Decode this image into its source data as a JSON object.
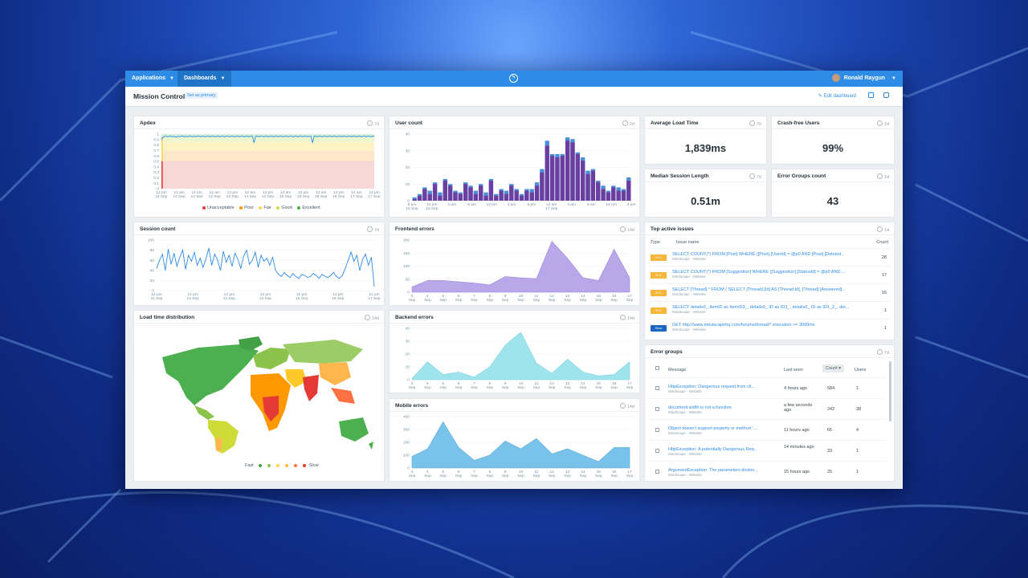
{
  "nav": {
    "applications": "Applications",
    "dashboards": "Dashboards",
    "user": "Ronald Raygun"
  },
  "page": {
    "title": "Mission Control",
    "set_primary": "Set as primary",
    "edit": "Edit dashboard"
  },
  "colors": {
    "topbar": "#2e8ce6",
    "accent": "#2e8ce6",
    "purple": "#6a3fa0",
    "purple_light": "#b9a7ea",
    "cyan": "#9fe3ec",
    "blue_area": "#79c2ea",
    "error_tag": "#f6b63a",
    "slow_tag": "#1a66c2"
  },
  "panels": {
    "apdex": {
      "title": "Apdex",
      "range": "7d"
    },
    "user_count": {
      "title": "User count",
      "range": "2d"
    },
    "avg_load": {
      "title": "Average Load Time",
      "range": "7d",
      "value": "1,839ms"
    },
    "crash_free": {
      "title": "Crash-free Users",
      "range": "1d",
      "value": "99%"
    },
    "median_session": {
      "title": "Median Session Length",
      "range": "7d",
      "value": "0.51m"
    },
    "error_groups_count": {
      "title": "Error Groups count",
      "range": "1d",
      "value": "43"
    },
    "session_count": {
      "title": "Session count",
      "range": "7d"
    },
    "frontend": {
      "title": "Frontend errors",
      "range": "14d"
    },
    "backend": {
      "title": "Backend errors",
      "range": "14d"
    },
    "mobile": {
      "title": "Mobile errors",
      "range": "14d"
    },
    "load_dist": {
      "title": "Load time distribution",
      "range": "14d",
      "fast": "Fast",
      "slow": "Slow"
    },
    "top_issues": {
      "title": "Top active issues",
      "range": "1d",
      "h_type": "Type",
      "h_name": "Issue name",
      "h_count": "Count"
    },
    "error_groups": {
      "title": "Error groups",
      "range": "7d",
      "h_msg": "Message",
      "h_seen": "Last seen",
      "h_count": "Count",
      "h_users": "Users"
    }
  },
  "apdex_legend": [
    "Unacceptable",
    "Poor",
    "Fair",
    "Good",
    "Excellent"
  ],
  "apdex_legend_colors": [
    "#e53935",
    "#ff9800",
    "#ffd54f",
    "#cddc39",
    "#4caf50"
  ],
  "top_issues": [
    {
      "tag": "N+1",
      "name": "SELECT COUNT(*) FROM [Post] WHERE ([Post].[UserId] = @p0 AND [Post].[Deleted...",
      "app": "Mindscape - Website",
      "count": "28"
    },
    {
      "tag": "N+1",
      "name": "SELECT COUNT(*) FROM [Suggestion] WHERE ([Suggestion].[StatusId] = @p0 AND ...",
      "app": "Mindscape - Website",
      "count": "17"
    },
    {
      "tag": "N+1",
      "name": "SELECT [Thread].* FROM ( SELECT [Thread].[Id] AS [Thread.Id], [Thread].[Answered]...",
      "app": "Mindscape - Website",
      "count": "16"
    },
    {
      "tag": "N+1",
      "name": "SELECT details0_.ItemID as ItemID3_, details0_.ID as ID3_, details0_.ID as ID1_2_, det...",
      "app": "Mindscape - Website",
      "count": "1"
    },
    {
      "tag": "Slow",
      "name": "GET http://www.mindscapehq.com/forums/thread/* execution >= 3000ms",
      "app": "Mindscape - Website",
      "count": "1"
    }
  ],
  "error_rows": [
    {
      "msg": "HttpException: Dangerous request from cli...",
      "app": "Mindscape - Website",
      "seen": "4 hours ago",
      "count": "584",
      "users": "1"
    },
    {
      "msg": "document.width is not a function",
      "app": "Mindscape - Website",
      "seen": "a few seconds ago",
      "count": "242",
      "users": "38"
    },
    {
      "msg": "Object doesn't support property or method '...",
      "app": "Mindscape - Website",
      "seen": "11 hours ago",
      "count": "65",
      "users": "4"
    },
    {
      "msg": "HttpException: A potentially Dangerous Req...",
      "app": "Mindscape - Website",
      "seen": "14 minutes ago",
      "count": "33",
      "users": "1"
    },
    {
      "msg": "ArgumentException: The parameters diction...",
      "app": "Mindscape - Website",
      "seen": "15 hours ago",
      "count": "25",
      "users": "1"
    }
  ],
  "chart_data": [
    {
      "id": "apdex",
      "type": "line",
      "title": "Apdex",
      "ylim": [
        0,
        1
      ],
      "yticks": [
        "0",
        "0.1",
        "0.2",
        "0.3",
        "0.4",
        "0.5",
        "0.6",
        "0.7",
        "0.8",
        "0.9",
        "1"
      ],
      "xticks": [
        "12 pm|11 Sep",
        "12 am|12 Sep",
        "12 pm|12 Sep",
        "12 am|13 Sep",
        "12 pm|13 Sep",
        "12 am|14 Sep",
        "12 pm|14 Sep",
        "12 am|15 Sep",
        "12 pm|15 Sep",
        "12 am|16 Sep",
        "12 pm|16 Sep",
        "12 am|17 Sep",
        "12 pm|17 Sep"
      ],
      "values": [
        0.9,
        0.94,
        0.96,
        0.96,
        0.95,
        0.96,
        0.96,
        0.95,
        0.96,
        0.94,
        0.96,
        0.95,
        0.96,
        0.96,
        0.95,
        0.96,
        0.95,
        0.96,
        0.96,
        0.95,
        0.96,
        0.95,
        0.96,
        0.96,
        0.95,
        0.96,
        0.96,
        0.95,
        0.96,
        0.96,
        0.95,
        0.96,
        0.96,
        0.95,
        0.96,
        0.96,
        0.95,
        0.96,
        0.96,
        0.95,
        0.96,
        0.96,
        0.95,
        0.96,
        0.96,
        0.95,
        0.96,
        0.96,
        0.95,
        0.96,
        0.96,
        0.95,
        0.96,
        0.96,
        0.95,
        0.96,
        0.96,
        0.84,
        0.96,
        0.96,
        0.95,
        0.96,
        0.96,
        0.95,
        0.96,
        0.96,
        0.95,
        0.96,
        0.96,
        0.95,
        0.96,
        0.96,
        0.95,
        0.96,
        0.96,
        0.95,
        0.96,
        0.96,
        0.95,
        0.96,
        0.96,
        0.95,
        0.96,
        0.96,
        0.95,
        0.96,
        0.96,
        0.95,
        0.96,
        0.96,
        0.95,
        0.96,
        0.96,
        0.84,
        0.96,
        0.96,
        0.95,
        0.96,
        0.96,
        0.95,
        0.96,
        0.96,
        0.95,
        0.96,
        0.96,
        0.95,
        0.96,
        0.96,
        0.95,
        0.96,
        0.96,
        0.95,
        0.96,
        0.96,
        0.95,
        0.96,
        0.96,
        0.95,
        0.96,
        0.96,
        0.95,
        0.96,
        0.96,
        0.95,
        0.96,
        0.96,
        0.95,
        0.96,
        0.96,
        0.95,
        0.96,
        0.96
      ]
    },
    {
      "id": "users",
      "type": "bar",
      "title": "User count",
      "ylim": [
        0,
        40
      ],
      "yticks": [
        "0",
        "10",
        "20",
        "30",
        "40"
      ],
      "xticks": [
        "8 pm|16 Sep",
        "12 pm|16 Sep",
        "4 am",
        "8 am",
        "12 pm",
        "4 pm",
        "8 pm",
        "12 am|17 Sep",
        "4 am",
        "8 am",
        "12 pm",
        "4 pm"
      ],
      "series": [
        {
          "name": "",
          "values": [
            1,
            3,
            7,
            4,
            10,
            3,
            12,
            9,
            5,
            4,
            10,
            8,
            4,
            9,
            3,
            12,
            3,
            6,
            4,
            9,
            6,
            3,
            6,
            5,
            9,
            17,
            33,
            27,
            26,
            27,
            36,
            35,
            28,
            24,
            16,
            18,
            11,
            7,
            5,
            8,
            6,
            6,
            12
          ]
        },
        {
          "name": "",
          "values": [
            2,
            4,
            8,
            6,
            11,
            5,
            13,
            10,
            6,
            5,
            11,
            9,
            6,
            10,
            5,
            13,
            4,
            7,
            6,
            10,
            7,
            4,
            7,
            7,
            11,
            19,
            36,
            28,
            28,
            28,
            38,
            37,
            29,
            26,
            18,
            19,
            12,
            9,
            6,
            9,
            8,
            7,
            14
          ]
        }
      ]
    },
    {
      "id": "sessions",
      "type": "line",
      "title": "Session count",
      "ylim": [
        0,
        100
      ],
      "yticks": [
        "0",
        "20",
        "40",
        "60",
        "80",
        "100"
      ],
      "xticks": [
        "12 pm|11 Sep",
        "12 pm|12 Sep",
        "12 pm|13 Sep",
        "12 pm|14 Sep",
        "12 pm|15 Sep",
        "12 pm|16 Sep",
        "12 pm|17 Sep"
      ],
      "values": [
        44,
        60,
        72,
        40,
        82,
        52,
        74,
        48,
        66,
        80,
        42,
        70,
        58,
        76,
        50,
        64,
        46,
        62,
        84,
        50,
        72,
        60,
        40,
        78,
        56,
        70,
        48,
        74,
        62,
        44,
        68,
        80,
        52,
        60,
        76,
        46,
        70,
        58,
        64,
        50,
        66,
        40,
        32,
        28,
        36,
        30,
        26,
        34,
        28,
        24,
        32,
        30,
        26,
        28,
        34,
        30,
        24,
        32,
        28,
        26,
        30,
        36,
        28,
        24,
        30,
        44,
        60,
        76,
        58,
        70,
        40,
        62,
        72,
        50,
        66,
        8
      ]
    },
    {
      "id": "frontend",
      "type": "area",
      "title": "Frontend errors",
      "ylim": [
        0,
        200
      ],
      "yticks": [
        "0",
        "50",
        "100",
        "150",
        "200"
      ],
      "x": [
        "3|Sep",
        "4|Sep",
        "5|Sep",
        "6|Sep",
        "7|Sep",
        "8|Sep",
        "9|Sep",
        "10|Sep",
        "11|Sep",
        "12|Sep",
        "13|Sep",
        "14|Sep",
        "15|Sep",
        "16|Sep",
        "17|Sep"
      ],
      "values": [
        20,
        45,
        45,
        40,
        35,
        28,
        60,
        55,
        52,
        195,
        130,
        55,
        45,
        165,
        55
      ]
    },
    {
      "id": "backend",
      "type": "area",
      "title": "Backend errors",
      "ylim": [
        0,
        40
      ],
      "yticks": [
        "0",
        "10",
        "20",
        "30",
        "40"
      ],
      "x": [
        "3|Sep",
        "4|Sep",
        "5|Sep",
        "6|Sep",
        "7|Sep",
        "8|Sep",
        "9|Sep",
        "10|Sep",
        "11|Sep",
        "12|Sep",
        "13|Sep",
        "14|Sep",
        "15|Sep",
        "16|Sep",
        "17|Sep"
      ],
      "values": [
        1,
        14,
        4,
        6,
        2,
        10,
        27,
        37,
        13,
        5,
        16,
        6,
        3,
        4,
        14
      ]
    },
    {
      "id": "mobile",
      "type": "area",
      "title": "Mobile errors",
      "ylim": [
        0,
        400
      ],
      "yticks": [
        "0",
        "100",
        "200",
        "300",
        "400"
      ],
      "x": [
        "3|Sep",
        "4|Sep",
        "5|Sep",
        "6|Sep",
        "7|Sep",
        "8|Sep",
        "9|Sep",
        "10|Sep",
        "11|Sep",
        "12|Sep",
        "13|Sep",
        "14|Sep",
        "15|Sep",
        "16|Sep",
        "17|Sep"
      ],
      "values": [
        90,
        150,
        360,
        160,
        60,
        100,
        210,
        150,
        230,
        110,
        150,
        100,
        50,
        160,
        160
      ]
    }
  ]
}
